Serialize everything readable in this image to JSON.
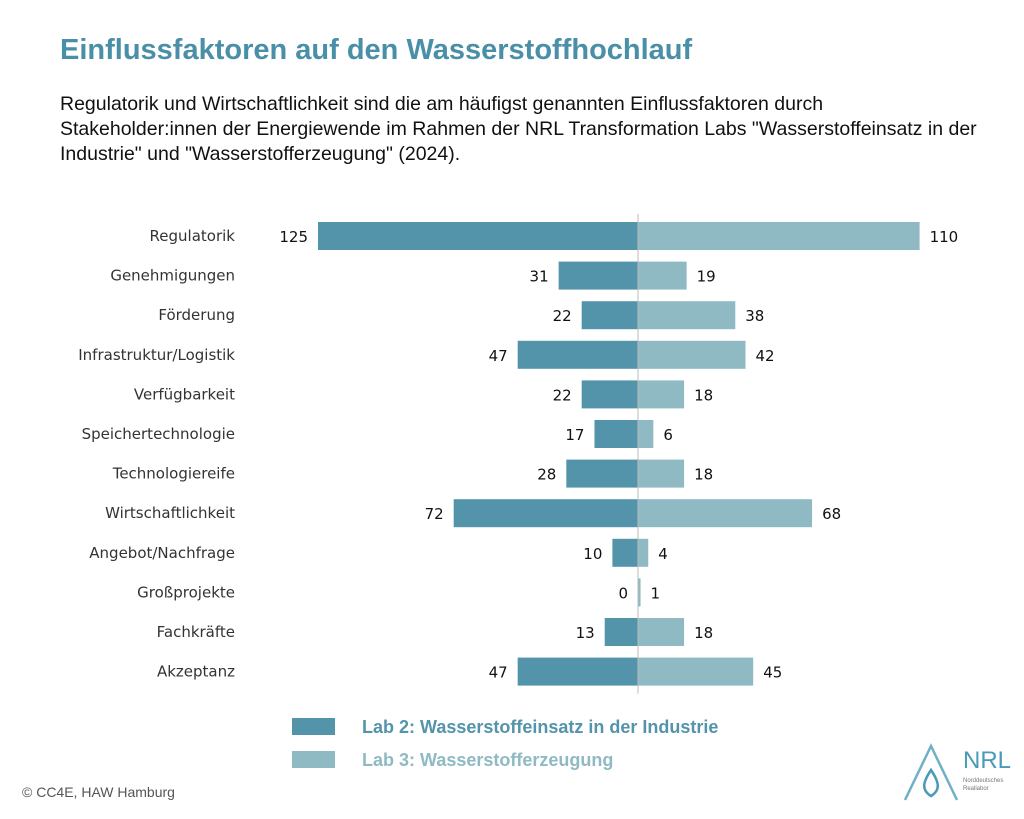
{
  "title": "Einflussfaktoren auf den Wasserstoffhochlauf",
  "subtitle": "Regulatorik und Wirtschaftlichkeit sind die am häufigst genannten Einflussfaktoren durch Stakeholder:innen der Energiewende im Rahmen der NRL Transformation Labs \"Wasserstoffeinsatz in der Industrie\" und \"Wasserstofferzeugung\" (2024).",
  "copyright": "© CC4E, HAW Hamburg",
  "logo": {
    "text": "NRL",
    "line1": "Norddeutsches",
    "line2": "Reallabor"
  },
  "chart_data": {
    "type": "bar",
    "orientation": "horizontal-diverging",
    "categories": [
      "Regulatorik",
      "Genehmigungen",
      "Förderung",
      "Infrastruktur/Logistik",
      "Verfügbarkeit",
      "Speichertechnologie",
      "Technologiereife",
      "Wirtschaftlichkeit",
      "Angebot/Nachfrage",
      "Großprojekte",
      "Fachkräfte",
      "Akzeptanz"
    ],
    "series": [
      {
        "name": "Lab 2: Wasserstoffeinsatz in der Industrie",
        "color": "#5394ab",
        "direction": "left",
        "values": [
          125,
          31,
          22,
          47,
          22,
          17,
          28,
          72,
          10,
          0,
          13,
          47
        ]
      },
      {
        "name": "Lab 3: Wasserstofferzeugung",
        "color": "#8fbac4",
        "direction": "right",
        "values": [
          110,
          19,
          38,
          42,
          18,
          6,
          18,
          68,
          4,
          1,
          18,
          45
        ]
      }
    ],
    "legend": "bottom",
    "grid": false,
    "data_labels": true
  }
}
